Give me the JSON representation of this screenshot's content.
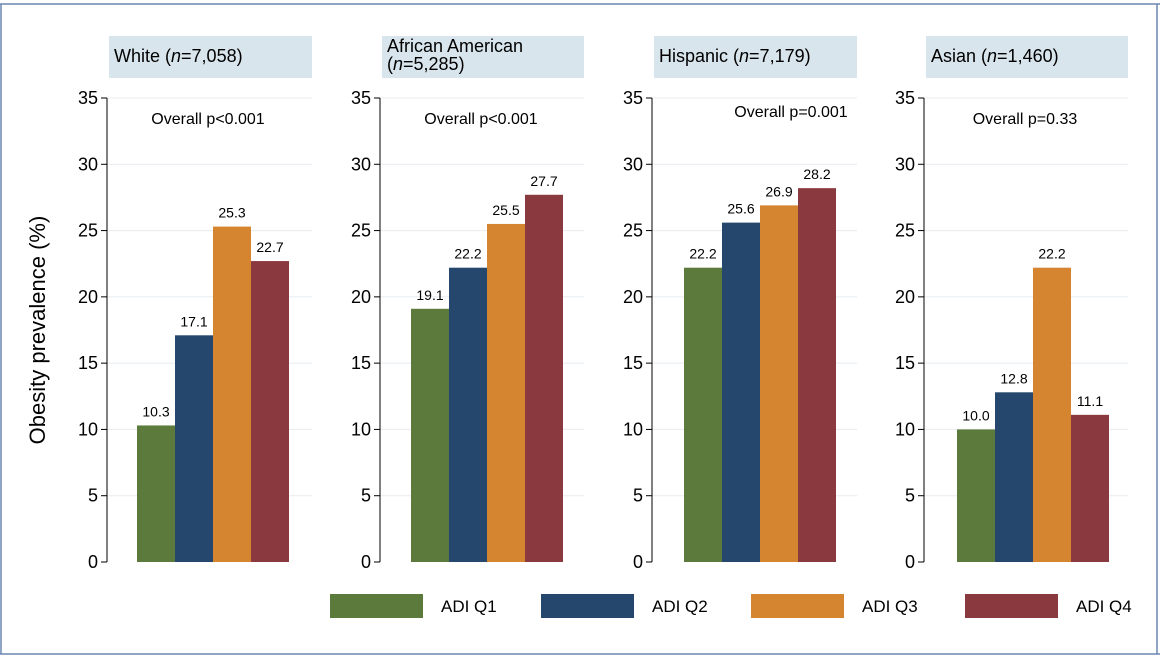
{
  "chart_data": {
    "type": "bar",
    "ylabel": "Obesity prevalence (%)",
    "ylim": [
      0,
      35
    ],
    "yticks": [
      0,
      5,
      10,
      15,
      20,
      25,
      30,
      35
    ],
    "grid": true,
    "legend_position": "bottom",
    "series_names": [
      "ADI Q1",
      "ADI Q2",
      "ADI Q3",
      "ADI Q4"
    ],
    "colors": [
      "#5b7a3b",
      "#25466d",
      "#d5842f",
      "#8a3a3f"
    ],
    "panels": [
      {
        "group": "White",
        "n": "7,058",
        "annotation": "Overall p<0.001",
        "values": [
          10.3,
          17.1,
          25.3,
          22.7
        ],
        "labels": [
          "10.3",
          "17.1",
          "25.3",
          "22.7"
        ]
      },
      {
        "group": "African American",
        "n": "5,285",
        "annotation": "Overall p<0.001",
        "values": [
          19.1,
          22.2,
          25.5,
          27.7
        ],
        "labels": [
          "19.1",
          "22.2",
          "25.5",
          "27.7"
        ]
      },
      {
        "group": "Hispanic",
        "n": "7,179",
        "annotation": "Overall p=0.001",
        "values": [
          22.2,
          25.6,
          26.9,
          28.2
        ],
        "labels": [
          "22.2",
          "25.6",
          "26.9",
          "28.2"
        ]
      },
      {
        "group": "Asian",
        "n": "1,460",
        "annotation": "Overall p=0.33",
        "values": [
          10.0,
          12.8,
          22.2,
          11.1
        ],
        "labels": [
          "10.0",
          "12.8",
          "22.2",
          "11.1"
        ]
      }
    ]
  }
}
